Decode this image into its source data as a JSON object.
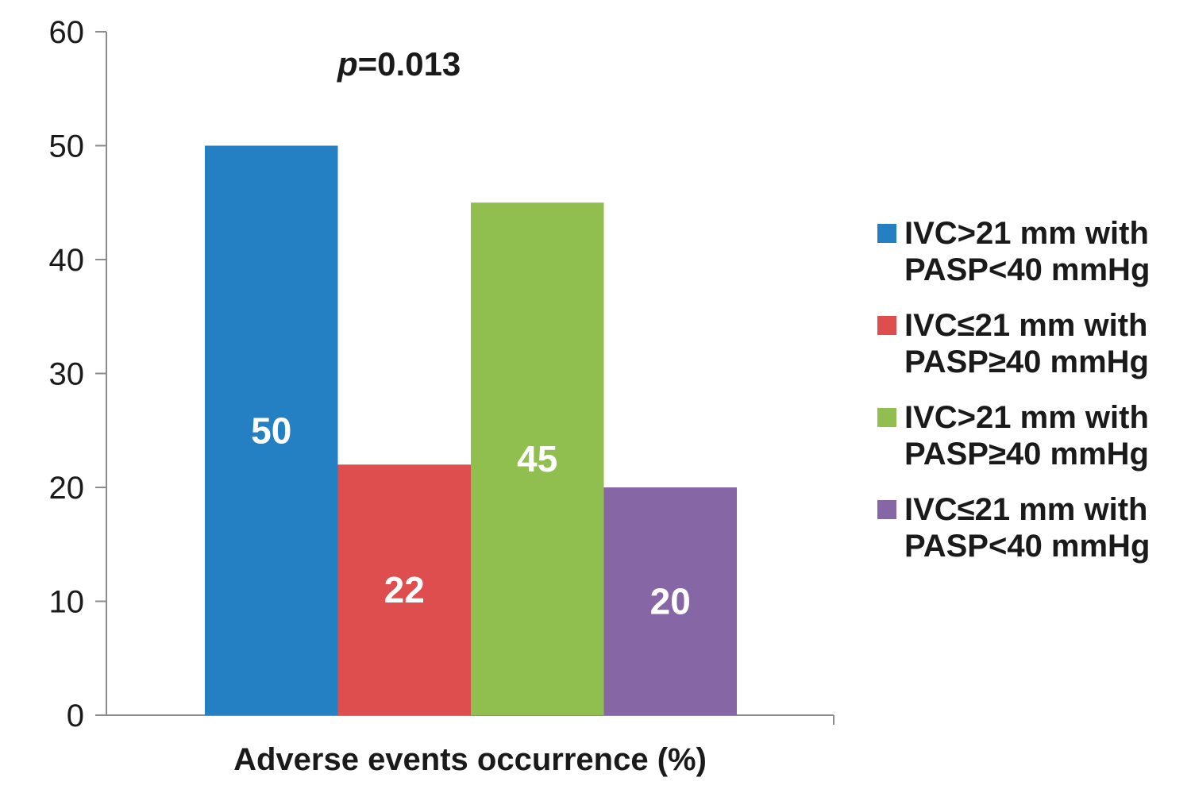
{
  "chart_data": {
    "type": "bar",
    "categories": [
      "Adverse events occurrence (%)"
    ],
    "xlabel": "Adverse events occurrence (%)",
    "ylabel": "",
    "ylim": [
      0,
      60
    ],
    "yticks": [
      0,
      10,
      20,
      30,
      40,
      50,
      60
    ],
    "grid": false,
    "legend_position": "right",
    "annotation": {
      "italic_part": "p",
      "rest": "=0.013"
    },
    "series": [
      {
        "name": "IVC>21 mm with PASP<40 mmHg",
        "name_lines": [
          "IVC>21 mm with",
          "PASP<40 mmHg"
        ],
        "values": [
          50
        ],
        "color": "#2580C3"
      },
      {
        "name": "IVC≤21 mm with PASP≥40 mmHg",
        "name_lines": [
          "IVC≤21 mm with",
          "PASP≥40 mmHg"
        ],
        "values": [
          22
        ],
        "color": "#DE4E4E"
      },
      {
        "name": "IVC>21 mm with PASP≥40 mmHg",
        "name_lines": [
          "IVC>21 mm with",
          "PASP≥40 mmHg"
        ],
        "values": [
          45
        ],
        "color": "#90BF50"
      },
      {
        "name": "IVC≤21 mm with PASP<40 mmHg",
        "name_lines": [
          "IVC≤21 mm with",
          "PASP<40 mmHg"
        ],
        "values": [
          20
        ],
        "color": "#8766A6"
      }
    ]
  }
}
